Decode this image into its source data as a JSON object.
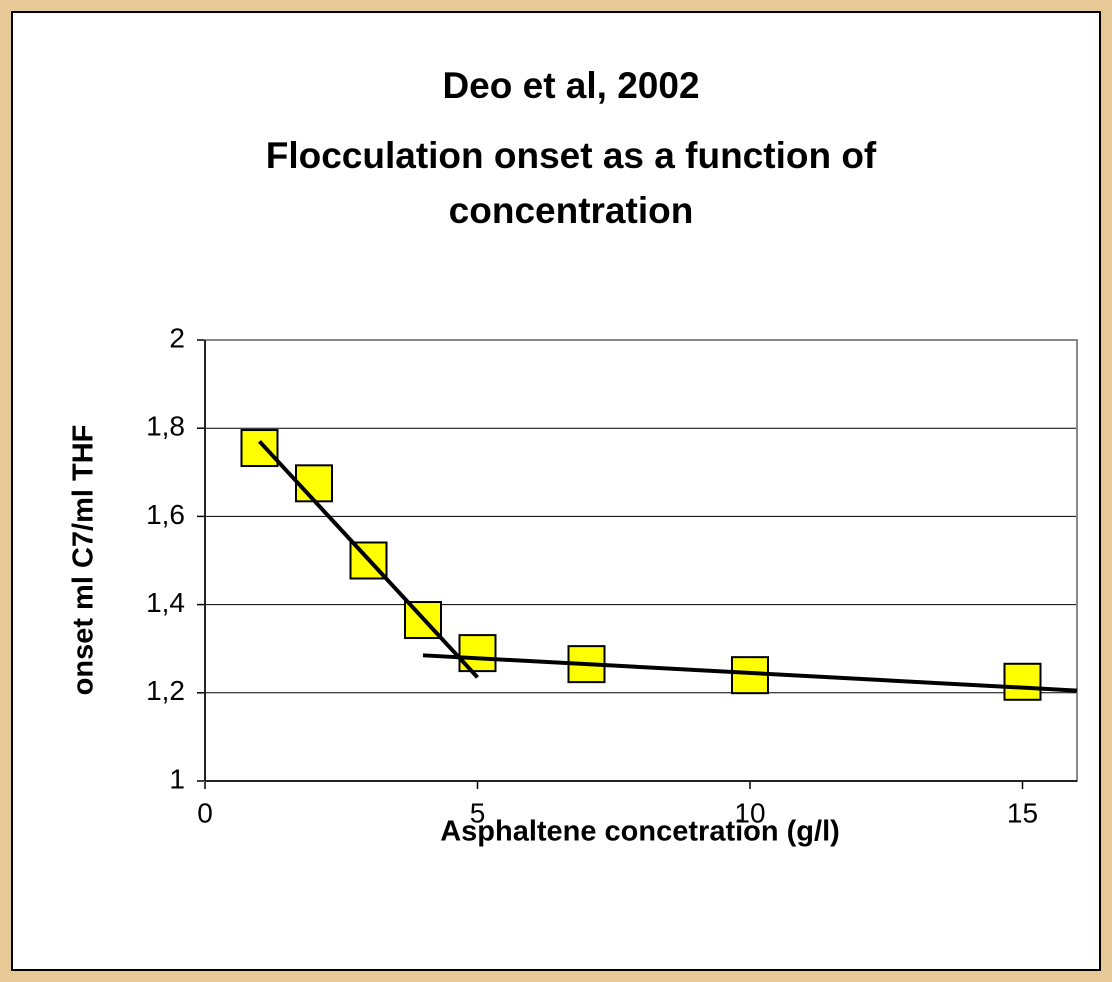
{
  "chart_data": {
    "type": "scatter",
    "title": [
      "Deo et al, 2002",
      "Flocculation onset as a function of",
      "concentration"
    ],
    "x_label": "Asphaltene concetration (g/l)",
    "y_label": "onset ml C7/ml THF",
    "x": [
      1,
      2,
      3,
      4,
      5,
      7,
      10,
      15
    ],
    "values": [
      1.755,
      1.675,
      1.5,
      1.365,
      1.29,
      1.265,
      1.24,
      1.225
    ],
    "color": "#ffff00",
    "trendlines": [
      {
        "x": [
          1,
          5
        ],
        "values": [
          1.77,
          1.235
        ]
      },
      {
        "x": [
          4,
          16
        ],
        "values": [
          1.285,
          1.205
        ]
      }
    ],
    "trendline_color": "#000000",
    "xlim": [
      0,
      16
    ],
    "xticks": [
      0,
      5,
      10,
      15
    ],
    "ylim": [
      1,
      2
    ],
    "yticks": [
      1,
      {
        "value": 1.2,
        "label": "1,2"
      },
      {
        "value": 1.4,
        "label": "1,4"
      },
      {
        "value": 1.6,
        "label": "1,6"
      },
      {
        "value": 1.8,
        "label": "1,8"
      },
      2
    ],
    "grid": true
  }
}
